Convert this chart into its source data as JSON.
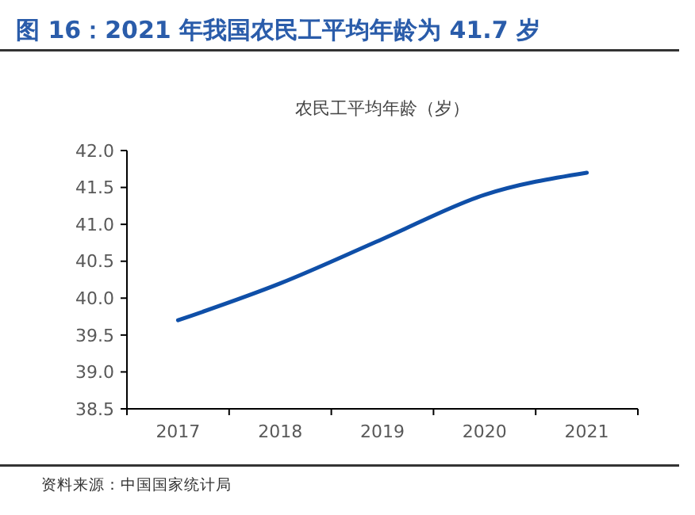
{
  "chart_data": {
    "type": "line",
    "title": "图 16：2021 年我国农民工平均年龄为 41.7 岁",
    "subtitle": "农民工平均年龄（岁）",
    "categories": [
      "2017",
      "2018",
      "2019",
      "2020",
      "2021"
    ],
    "series": [
      {
        "color": "#0f4fa8",
        "values": [
          39.7,
          40.2,
          40.8,
          41.4,
          41.7
        ]
      }
    ],
    "ylim": [
      38.5,
      42.0
    ],
    "yticks": [
      {
        "value": 38.5,
        "label": "38.5"
      },
      {
        "value": 39,
        "label": "39.0"
      },
      {
        "value": 39.5,
        "label": "39.5"
      },
      {
        "value": 40,
        "label": "40.0"
      },
      {
        "value": 40.5,
        "label": "40.5"
      },
      {
        "value": 41,
        "label": "41.0"
      },
      {
        "value": 41.5,
        "label": "41.5"
      },
      {
        "value": 42,
        "label": "42.0"
      }
    ],
    "grid": false,
    "marker": "none",
    "line_style": "solid",
    "annotations": [
      "资料来源：中国国家统计局"
    ]
  }
}
